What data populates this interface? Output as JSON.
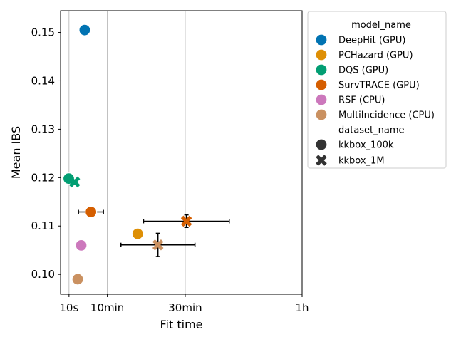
{
  "chart_data": {
    "type": "scatter",
    "title": "",
    "xlabel": "Fit time",
    "ylabel": "Mean IBS",
    "x_unit": "minutes",
    "xlim": [
      -2,
      60
    ],
    "ylim": [
      0.0959,
      0.1545
    ],
    "x_ticks": [
      {
        "value": 0.1667,
        "label": "10s"
      },
      {
        "value": 10,
        "label": "10min"
      },
      {
        "value": 30,
        "label": "30min"
      },
      {
        "value": 60,
        "label": "1h"
      }
    ],
    "y_ticks": [
      {
        "value": 0.1,
        "label": "0.10"
      },
      {
        "value": 0.11,
        "label": "0.11"
      },
      {
        "value": 0.12,
        "label": "0.12"
      },
      {
        "value": 0.13,
        "label": "0.13"
      },
      {
        "value": 0.14,
        "label": "0.14"
      },
      {
        "value": 0.15,
        "label": "0.15"
      }
    ],
    "grid": "vertical",
    "legend_placement": "outside-right",
    "legend": {
      "hue_title": "model_name",
      "style_title": "dataset_name",
      "models": [
        {
          "name": "DeepHit (GPU)",
          "color": "#0173b2"
        },
        {
          "name": "PCHazard (GPU)",
          "color": "#de8f05"
        },
        {
          "name": "DQS (GPU)",
          "color": "#029e73"
        },
        {
          "name": "SurvTRACE (GPU)",
          "color": "#d55e00"
        },
        {
          "name": "RSF (CPU)",
          "color": "#cc78bc"
        },
        {
          "name": "MultiIncidence (CPU)",
          "color": "#ca9161"
        }
      ],
      "datasets": [
        {
          "name": "kkbox_100k",
          "marker": "circle"
        },
        {
          "name": "kkbox_1M",
          "marker": "x"
        }
      ]
    },
    "points": [
      {
        "model": "DeepHit (GPU)",
        "dataset": "kkbox_100k",
        "x": 4.2,
        "y": 0.1505,
        "yerr": 0.0003
      },
      {
        "model": "DQS (GPU)",
        "dataset": "kkbox_100k",
        "x": 0.1,
        "y": 0.1198
      },
      {
        "model": "DQS (GPU)",
        "dataset": "kkbox_1M",
        "x": 1.6,
        "y": 0.1191
      },
      {
        "model": "SurvTRACE (GPU)",
        "dataset": "kkbox_100k",
        "x": 5.8,
        "y": 0.1129,
        "xerr": 3.2
      },
      {
        "model": "SurvTRACE (GPU)",
        "dataset": "kkbox_1M",
        "x": 30.3,
        "y": 0.111,
        "xerr": 11.0,
        "yerr": 0.0013
      },
      {
        "model": "PCHazard (GPU)",
        "dataset": "kkbox_100k",
        "x": 17.8,
        "y": 0.1084
      },
      {
        "model": "RSF (CPU)",
        "dataset": "kkbox_100k",
        "x": 3.3,
        "y": 0.106
      },
      {
        "model": "MultiIncidence (CPU)",
        "dataset": "kkbox_100k",
        "x": 2.4,
        "y": 0.099
      },
      {
        "model": "MultiIncidence (CPU)",
        "dataset": "kkbox_1M",
        "x": 23.0,
        "y": 0.1061,
        "xerr": 9.5,
        "yerr": 0.0024
      }
    ]
  }
}
